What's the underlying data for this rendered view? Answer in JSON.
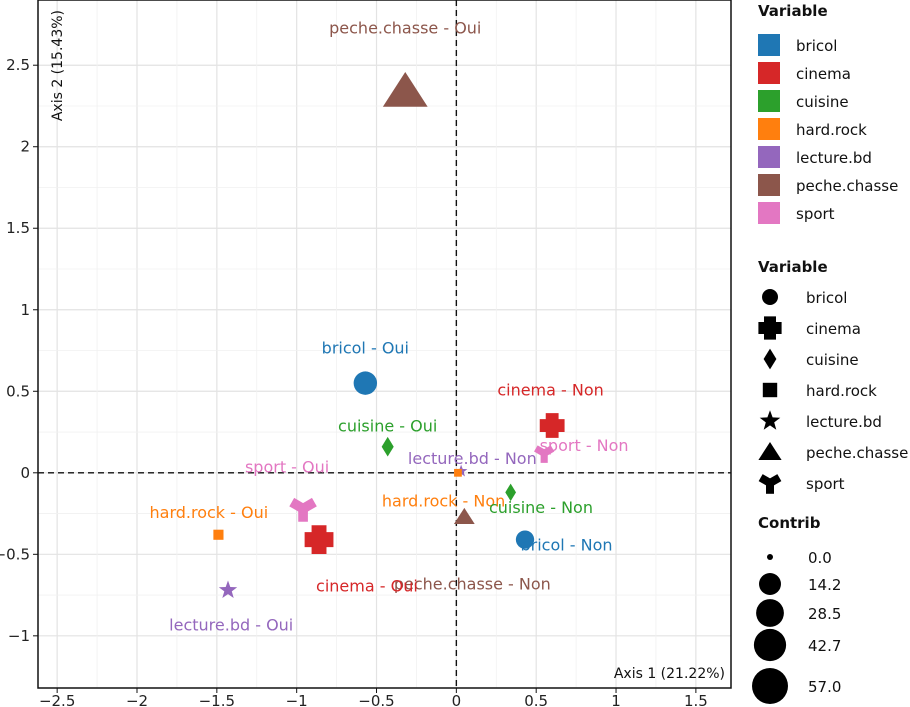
{
  "chart_data": {
    "type": "scatter",
    "x_axis_label": "Axis 1 (21.22%)",
    "y_axis_label": "Axis 2 (15.43%)",
    "xlim": [
      -2.62,
      1.72
    ],
    "ylim": [
      -1.32,
      2.9
    ],
    "x_ticks": [
      -2.5,
      -2,
      -1.5,
      -1,
      -0.5,
      0,
      0.5,
      1,
      1.5
    ],
    "x_tick_labels": [
      "−2.5",
      "−2",
      "−1.5",
      "−1",
      "−0.5",
      "0",
      "0.5",
      "1",
      "1.5"
    ],
    "y_ticks": [
      -1,
      -0.5,
      0,
      0.5,
      1,
      1.5,
      2,
      2.5
    ],
    "y_tick_labels": [
      "−1",
      "−0.5",
      "0",
      "0.5",
      "1",
      "1.5",
      "2",
      "2.5"
    ],
    "grid": true,
    "reference_lines": {
      "x": 0,
      "y": 0,
      "style": "dashed"
    },
    "points": [
      {
        "label": "peche.chasse - Oui",
        "variable": "peche.chasse",
        "x": -0.32,
        "y": 2.34,
        "contrib": 45,
        "label_x": -0.32,
        "label_y": 2.73
      },
      {
        "label": "bricol - Oui",
        "variable": "bricol",
        "x": -0.57,
        "y": 0.55,
        "contrib": 22,
        "label_x": -0.57,
        "label_y": 0.77
      },
      {
        "label": "cinema - Non",
        "variable": "cinema",
        "x": 0.6,
        "y": 0.29,
        "contrib": 9,
        "label_x": 0.59,
        "label_y": 0.51
      },
      {
        "label": "cuisine - Oui",
        "variable": "cuisine",
        "x": -0.43,
        "y": 0.16,
        "contrib": 6,
        "label_x": -0.43,
        "label_y": 0.29
      },
      {
        "label": "sport - Non",
        "variable": "sport",
        "x": 0.55,
        "y": 0.12,
        "contrib": 5,
        "label_x": 0.8,
        "label_y": 0.17
      },
      {
        "label": "lecture.bd - Non",
        "variable": "lecture.bd",
        "x": 0.03,
        "y": 0.01,
        "contrib": 1,
        "label_x": 0.1,
        "label_y": 0.09
      },
      {
        "label": "hard.rock - Non",
        "variable": "hard.rock",
        "x": 0.01,
        "y": 0.0,
        "contrib": 0.5,
        "label_x": -0.08,
        "label_y": -0.17
      },
      {
        "label": "sport - Oui",
        "variable": "sport",
        "x": -0.96,
        "y": -0.22,
        "contrib": 13,
        "label_x": -1.06,
        "label_y": 0.04
      },
      {
        "label": "cuisine - Non",
        "variable": "cuisine",
        "x": 0.34,
        "y": -0.12,
        "contrib": 4,
        "label_x": 0.53,
        "label_y": -0.21
      },
      {
        "label": "peche.chasse - Non",
        "variable": "peche.chasse",
        "x": 0.05,
        "y": -0.27,
        "contrib": 5,
        "label_x": 0.1,
        "label_y": -0.68
      },
      {
        "label": "hard.rock - Oui",
        "variable": "hard.rock",
        "x": -1.49,
        "y": -0.38,
        "contrib": 2,
        "label_x": -1.55,
        "label_y": -0.24
      },
      {
        "label": "cinema - Oui",
        "variable": "cinema",
        "x": -0.86,
        "y": -0.41,
        "contrib": 14,
        "label_x": -0.56,
        "label_y": -0.69
      },
      {
        "label": "bricol - Non",
        "variable": "bricol",
        "x": 0.43,
        "y": -0.41,
        "contrib": 11,
        "label_x": 0.69,
        "label_y": -0.44
      },
      {
        "label": "lecture.bd - Oui",
        "variable": "lecture.bd",
        "x": -1.43,
        "y": -0.72,
        "contrib": 5,
        "label_x": -1.41,
        "label_y": -0.93
      }
    ],
    "legend_color": {
      "title": "Variable",
      "position": "right",
      "items": [
        {
          "name": "bricol",
          "color": "#1f77b4"
        },
        {
          "name": "cinema",
          "color": "#d62728"
        },
        {
          "name": "cuisine",
          "color": "#2ca02c"
        },
        {
          "name": "hard.rock",
          "color": "#ff7f0e"
        },
        {
          "name": "lecture.bd",
          "color": "#9467bd"
        },
        {
          "name": "peche.chasse",
          "color": "#8c564b"
        },
        {
          "name": "sport",
          "color": "#e377c2"
        }
      ]
    },
    "legend_shape": {
      "title": "Variable",
      "items": [
        {
          "name": "bricol",
          "shape": "circle"
        },
        {
          "name": "cinema",
          "shape": "plus"
        },
        {
          "name": "cuisine",
          "shape": "diamond"
        },
        {
          "name": "hard.rock",
          "shape": "square"
        },
        {
          "name": "lecture.bd",
          "shape": "star"
        },
        {
          "name": "peche.chasse",
          "shape": "triangle"
        },
        {
          "name": "sport",
          "shape": "tri-branch"
        }
      ]
    },
    "legend_size": {
      "title": "Contrib",
      "items": [
        {
          "label": "0.0",
          "value": 0
        },
        {
          "label": "14.2",
          "value": 14.2
        },
        {
          "label": "28.5",
          "value": 28.5
        },
        {
          "label": "42.7",
          "value": 42.7
        },
        {
          "label": "57.0",
          "value": 57
        }
      ]
    }
  }
}
